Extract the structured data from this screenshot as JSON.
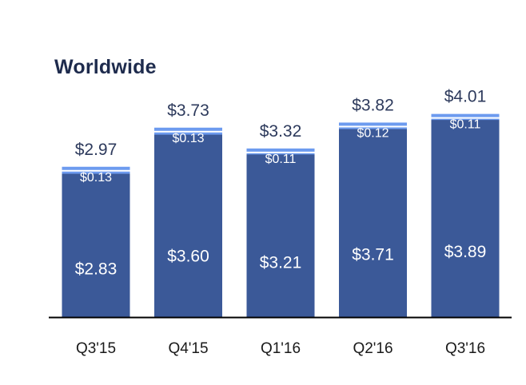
{
  "chart_data": {
    "type": "bar",
    "title": "Worldwide",
    "xlabel": "",
    "ylabel": "",
    "stacked": true,
    "categories": [
      "Q3'15",
      "Q4'15",
      "Q1'16",
      "Q2'16",
      "Q3'16"
    ],
    "series": [
      {
        "values": [
          2.83,
          3.6,
          3.21,
          3.71,
          3.89
        ],
        "labels": [
          "$2.83",
          "$3.60",
          "$3.21",
          "$3.71",
          "$3.89"
        ],
        "color": "#3b5998"
      },
      {
        "values": [
          0.13,
          0.13,
          0.11,
          0.12,
          0.11
        ],
        "labels": [
          "$0.13",
          "$0.13",
          "$0.11",
          "$0.12",
          "$0.11"
        ],
        "color": "#6d9bef"
      }
    ],
    "totals": [
      2.97,
      3.73,
      3.32,
      3.82,
      4.01
    ],
    "total_labels": [
      "$2.97",
      "$3.73",
      "$3.32",
      "$3.82",
      "$4.01"
    ],
    "ylim": [
      0,
      4.01
    ],
    "grid": false,
    "legend": "none",
    "colors": {
      "title": "#1e2b4d",
      "total_label": "#2d3a5c",
      "inner_label": "#ffffff",
      "axis": "#000000",
      "tick_label": "#1a1a1a",
      "separator": "#ffffff"
    }
  }
}
